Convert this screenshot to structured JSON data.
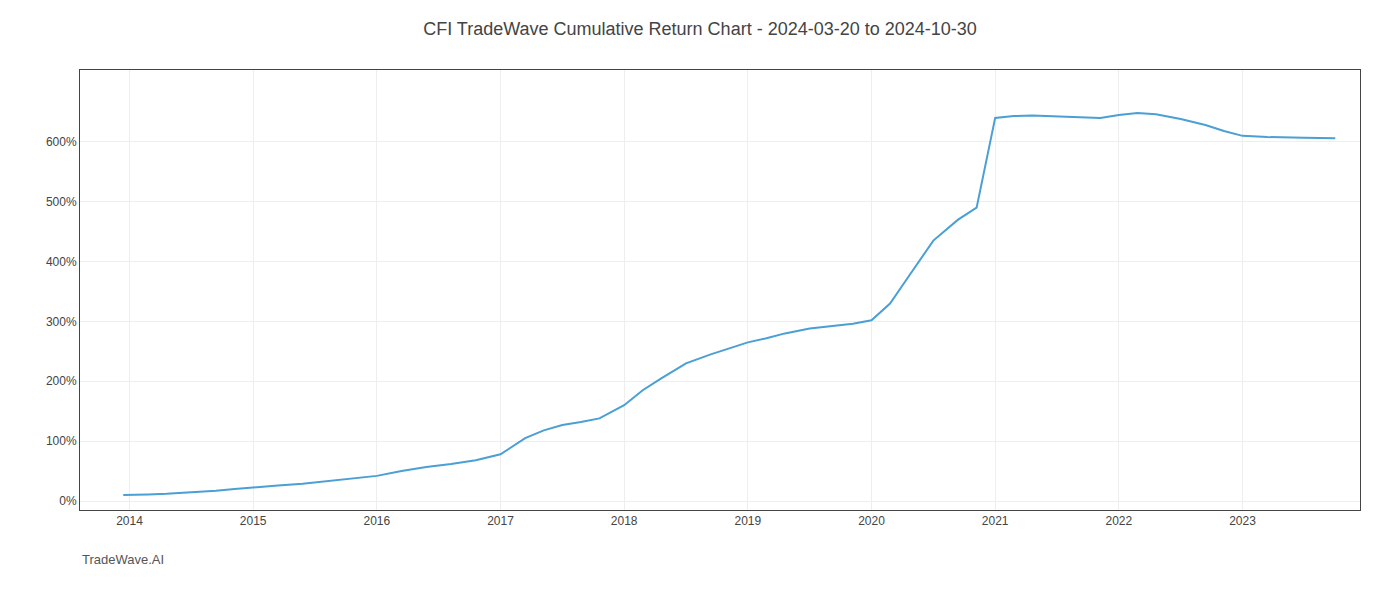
{
  "chart_data": {
    "type": "line",
    "title": "CFI TradeWave Cumulative Return Chart - 2024-03-20 to 2024-10-30",
    "x": [
      2013.95,
      2014.0,
      2014.15,
      2014.3,
      2014.5,
      2014.7,
      2014.85,
      2015.0,
      2015.2,
      2015.4,
      2015.6,
      2015.8,
      2016.0,
      2016.2,
      2016.4,
      2016.6,
      2016.8,
      2017.0,
      2017.1,
      2017.2,
      2017.35,
      2017.5,
      2017.65,
      2017.8,
      2018.0,
      2018.15,
      2018.3,
      2018.5,
      2018.7,
      2018.85,
      2019.0,
      2019.15,
      2019.3,
      2019.5,
      2019.7,
      2019.85,
      2020.0,
      2020.15,
      2020.3,
      2020.5,
      2020.7,
      2020.85,
      2021.0,
      2021.15,
      2021.3,
      2021.5,
      2021.7,
      2021.85,
      2022.0,
      2022.15,
      2022.3,
      2022.5,
      2022.7,
      2022.85,
      2023.0,
      2023.2,
      2023.5,
      2023.75
    ],
    "values": [
      10,
      10,
      11,
      12,
      14,
      17,
      20,
      23,
      26,
      29,
      33,
      37,
      42,
      50,
      57,
      62,
      68,
      78,
      92,
      105,
      118,
      127,
      132,
      138,
      160,
      185,
      205,
      230,
      245,
      255,
      265,
      272,
      280,
      288,
      293,
      296,
      302,
      330,
      375,
      435,
      470,
      490,
      640,
      643,
      644,
      643,
      641,
      640,
      645,
      648,
      646,
      638,
      628,
      618,
      610,
      608,
      607,
      606
    ],
    "color": "#4a9fd4",
    "xlim": [
      2013.6,
      2023.95
    ],
    "xticks": [
      2014,
      2015,
      2016,
      2017,
      2018,
      2019,
      2020,
      2021,
      2022,
      2023
    ],
    "ylim": [
      -15,
      720
    ],
    "yticks": [
      {
        "value": 0,
        "label": "0%"
      },
      {
        "value": 100,
        "label": "100%"
      },
      {
        "value": 200,
        "label": "200%"
      },
      {
        "value": 300,
        "label": "300%"
      },
      {
        "value": 400,
        "label": "400%"
      },
      {
        "value": 500,
        "label": "500%"
      },
      {
        "value": 600,
        "label": "600%"
      }
    ],
    "grid": true,
    "annotations": [
      {
        "text": "TradeWave.AI"
      }
    ]
  }
}
